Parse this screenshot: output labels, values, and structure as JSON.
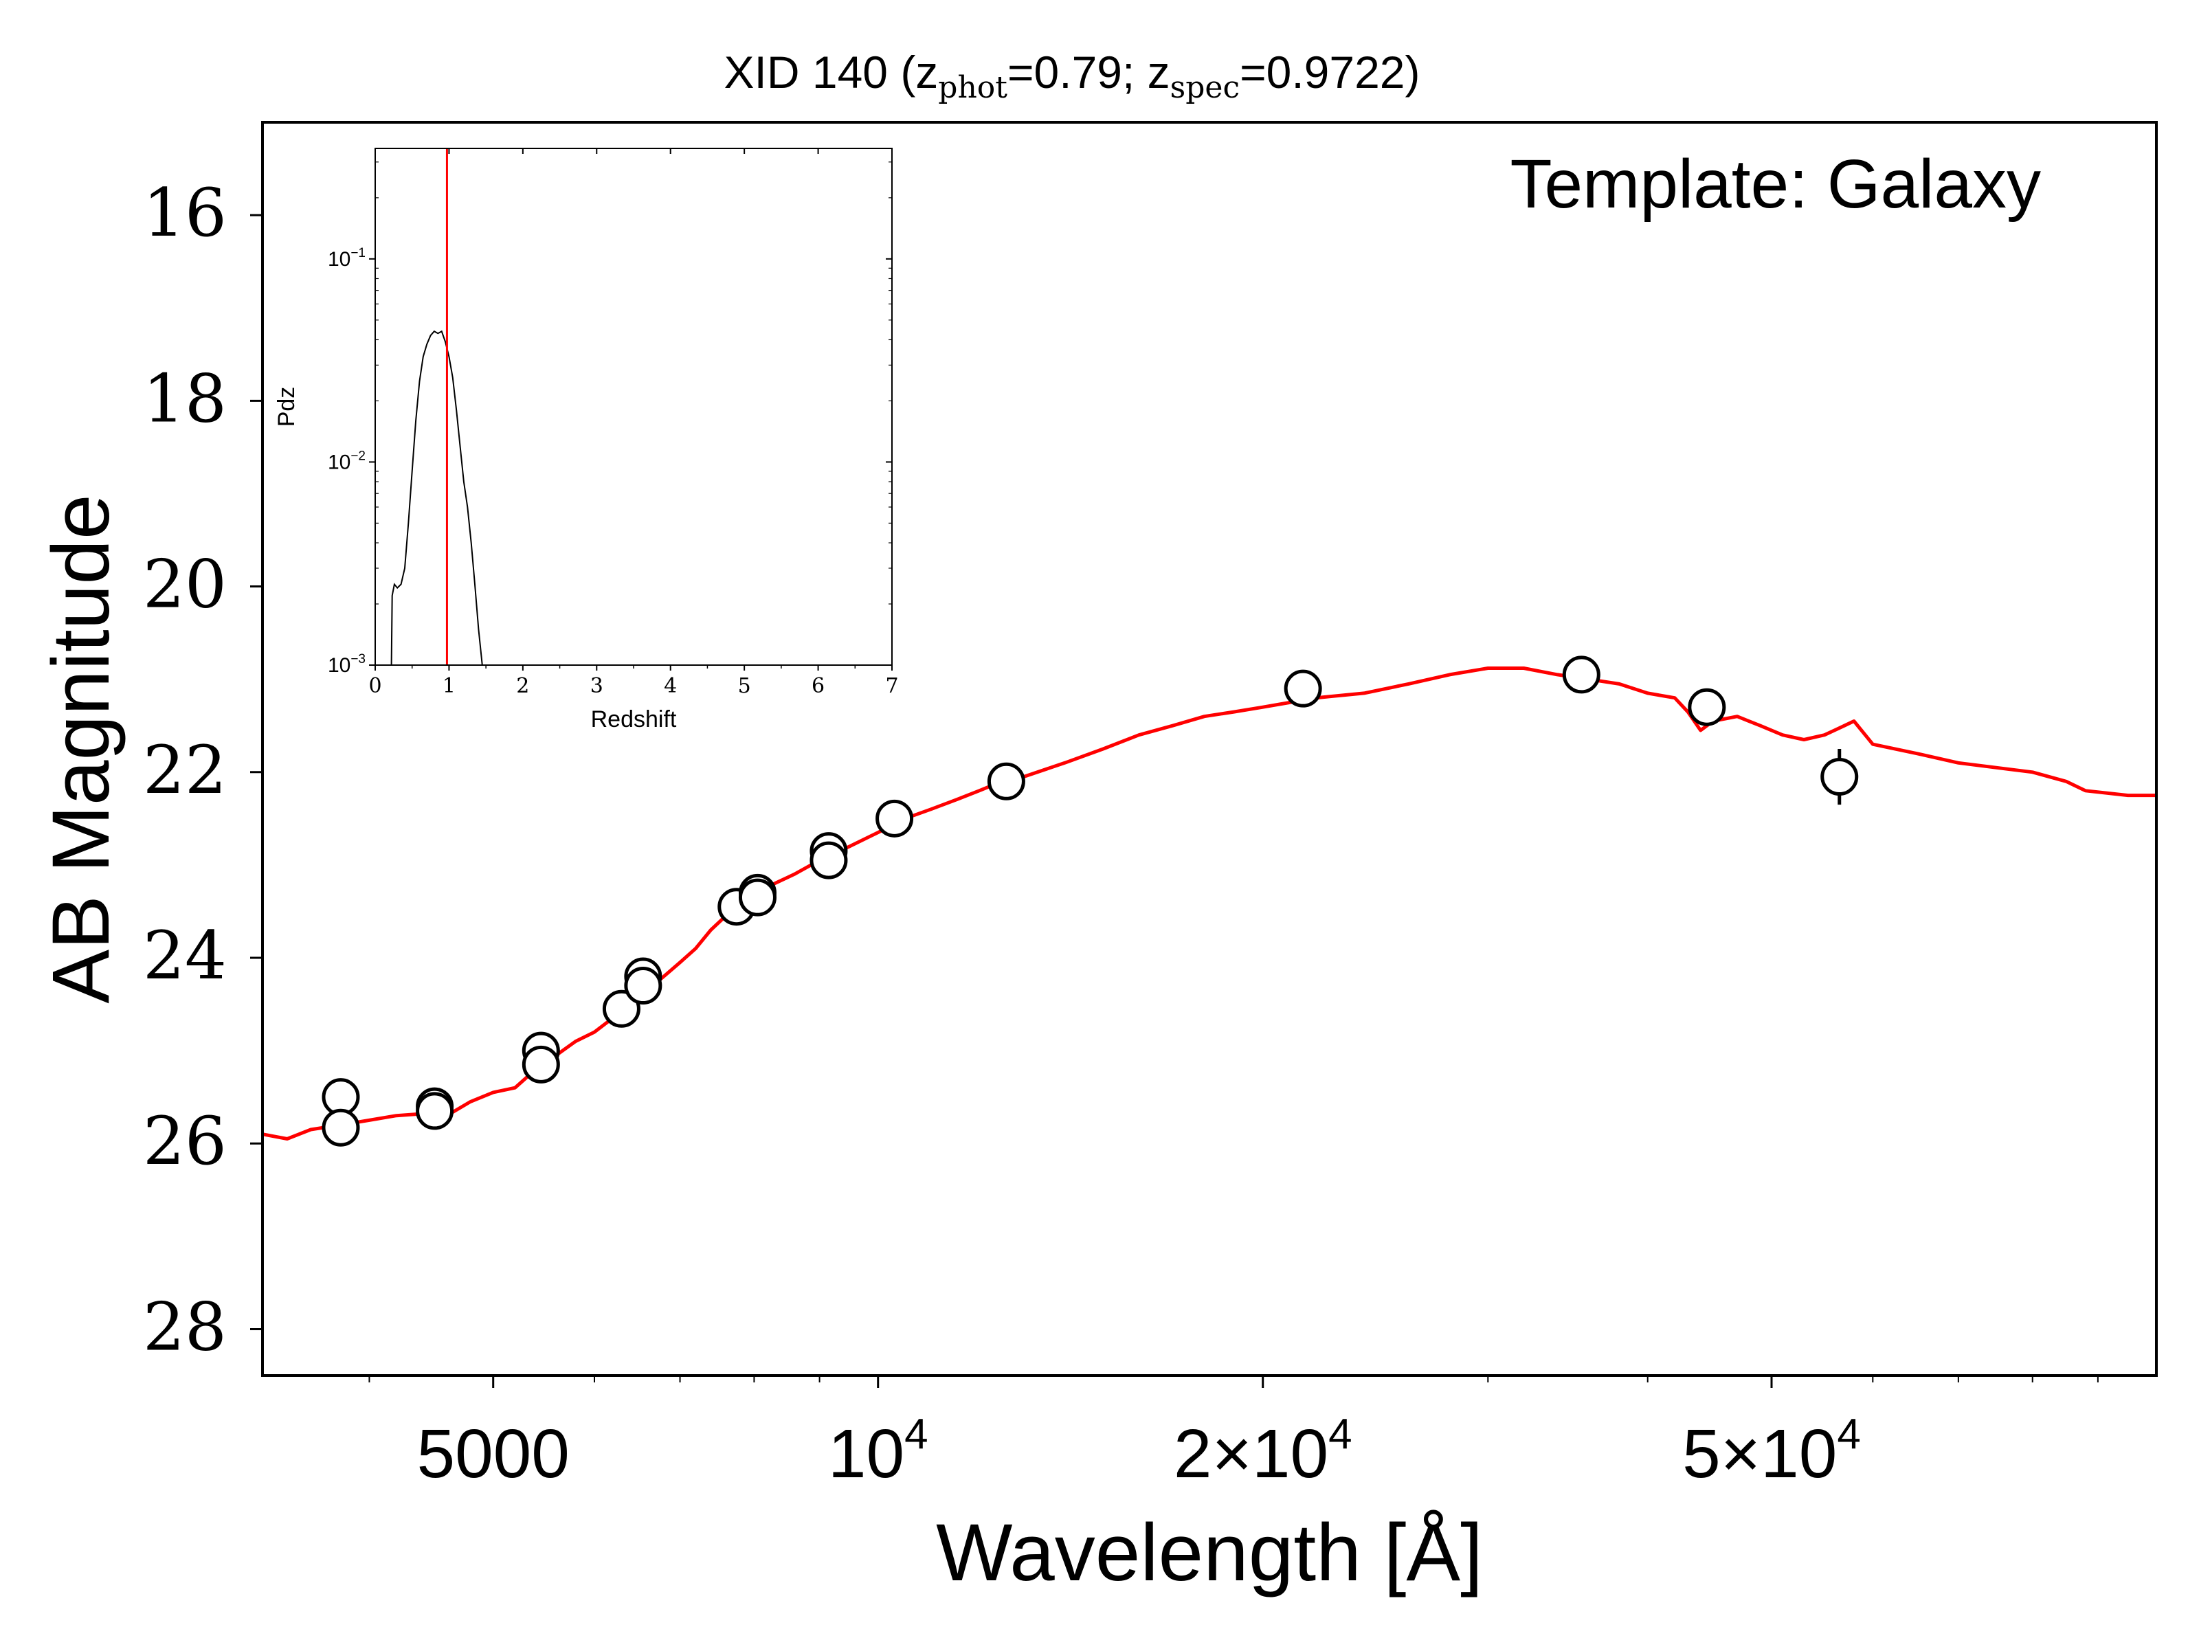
{
  "chart_data": [
    {
      "type": "scatter",
      "title": "XID 140 (zphot=0.79; zspec=0.9722)",
      "title_parts": {
        "prefix": "XID 140 (z",
        "sub1": "phot",
        "mid": "=0.79; z",
        "sub2": "spec",
        "suffix": "=0.9722)"
      },
      "annotation": "Template: Galaxy",
      "xlabel": "Wavelength [Å]",
      "ylabel": "AB Magnitude",
      "xscale": "log",
      "xlim": [
        3300,
        100000
      ],
      "ylim": [
        28.5,
        15.0
      ],
      "y_inverted": true,
      "xticks": [
        {
          "value": 5000,
          "label": "5000"
        },
        {
          "value": 10000,
          "label": "10",
          "sup": "4"
        },
        {
          "value": 20000,
          "label": "2×10",
          "sup": "4"
        },
        {
          "value": 50000,
          "label": "5×10",
          "sup": "4"
        }
      ],
      "yticks": [
        {
          "value": 16,
          "label": "16"
        },
        {
          "value": 18,
          "label": "18"
        },
        {
          "value": 20,
          "label": "20"
        },
        {
          "value": 22,
          "label": "22"
        },
        {
          "value": 24,
          "label": "24"
        },
        {
          "value": 26,
          "label": "26"
        },
        {
          "value": 28,
          "label": "28"
        }
      ],
      "grid": false,
      "series": [
        {
          "kind": "points",
          "color": "#000000",
          "marker": "open-circle",
          "points": [
            [
              3800,
              25.5
            ],
            [
              3800,
              25.83
            ],
            [
              4500,
              25.6
            ],
            [
              4500,
              25.65
            ],
            [
              5450,
              25.0
            ],
            [
              5450,
              25.15
            ],
            [
              6300,
              24.55
            ],
            [
              6550,
              24.2
            ],
            [
              6550,
              24.3
            ],
            [
              7750,
              23.45
            ],
            [
              8050,
              23.3
            ],
            [
              8050,
              23.35
            ],
            [
              9150,
              22.85
            ],
            [
              9150,
              22.95
            ],
            [
              10300,
              22.5
            ],
            [
              12600,
              22.1
            ],
            [
              21500,
              21.1
            ],
            [
              35500,
              20.95
            ],
            [
              44500,
              21.3
            ],
            [
              56500,
              22.05
            ]
          ],
          "yerr": [
            0,
            0,
            0,
            0,
            0,
            0,
            0,
            0,
            0,
            0,
            0,
            0,
            0,
            0,
            0,
            0,
            0,
            0,
            0,
            0.3
          ]
        },
        {
          "kind": "line",
          "color": "#ff0000",
          "points": [
            [
              3300,
              25.9
            ],
            [
              3450,
              25.95
            ],
            [
              3600,
              25.85
            ],
            [
              3800,
              25.8
            ],
            [
              4000,
              25.75
            ],
            [
              4200,
              25.7
            ],
            [
              4400,
              25.68
            ],
            [
              4600,
              25.7
            ],
            [
              4800,
              25.55
            ],
            [
              5000,
              25.45
            ],
            [
              5200,
              25.4
            ],
            [
              5400,
              25.2
            ],
            [
              5600,
              25.05
            ],
            [
              5800,
              24.9
            ],
            [
              6000,
              24.8
            ],
            [
              6200,
              24.65
            ],
            [
              6400,
              24.5
            ],
            [
              6600,
              24.35
            ],
            [
              6800,
              24.2
            ],
            [
              7000,
              24.05
            ],
            [
              7200,
              23.9
            ],
            [
              7400,
              23.7
            ],
            [
              7600,
              23.55
            ],
            [
              7800,
              23.45
            ],
            [
              8000,
              23.35
            ],
            [
              8300,
              23.2
            ],
            [
              8600,
              23.1
            ],
            [
              9000,
              22.95
            ],
            [
              9500,
              22.8
            ],
            [
              10000,
              22.65
            ],
            [
              10500,
              22.5
            ],
            [
              11000,
              22.4
            ],
            [
              11500,
              22.3
            ],
            [
              12000,
              22.2
            ],
            [
              12500,
              22.1
            ],
            [
              13000,
              22.05
            ],
            [
              14000,
              21.9
            ],
            [
              15000,
              21.75
            ],
            [
              16000,
              21.6
            ],
            [
              17000,
              21.5
            ],
            [
              18000,
              21.4
            ],
            [
              19000,
              21.35
            ],
            [
              20000,
              21.3
            ],
            [
              21000,
              21.25
            ],
            [
              22000,
              21.2
            ],
            [
              24000,
              21.15
            ],
            [
              26000,
              21.05
            ],
            [
              28000,
              20.95
            ],
            [
              30000,
              20.88
            ],
            [
              32000,
              20.88
            ],
            [
              34000,
              20.95
            ],
            [
              36000,
              21.0
            ],
            [
              38000,
              21.05
            ],
            [
              40000,
              21.15
            ],
            [
              42000,
              21.2
            ],
            [
              43000,
              21.35
            ],
            [
              44000,
              21.55
            ],
            [
              45000,
              21.45
            ],
            [
              47000,
              21.4
            ],
            [
              49000,
              21.5
            ],
            [
              51000,
              21.6
            ],
            [
              53000,
              21.65
            ],
            [
              55000,
              21.6
            ],
            [
              57000,
              21.5
            ],
            [
              58000,
              21.45
            ],
            [
              60000,
              21.7
            ],
            [
              65000,
              21.8
            ],
            [
              70000,
              21.9
            ],
            [
              80000,
              22.0
            ],
            [
              85000,
              22.1
            ],
            [
              88000,
              22.2
            ],
            [
              95000,
              22.25
            ],
            [
              100000,
              22.25
            ]
          ]
        }
      ]
    },
    {
      "type": "line",
      "title": "",
      "xlabel": "Redshift",
      "ylabel": "Pdz",
      "yscale": "log",
      "xlim": [
        0,
        7
      ],
      "ylim": [
        0.001,
        0.35
      ],
      "xticks": [
        {
          "value": 0,
          "label": "0"
        },
        {
          "value": 1,
          "label": "1"
        },
        {
          "value": 2,
          "label": "2"
        },
        {
          "value": 3,
          "label": "3"
        },
        {
          "value": 4,
          "label": "4"
        },
        {
          "value": 5,
          "label": "5"
        },
        {
          "value": 6,
          "label": "6"
        },
        {
          "value": 7,
          "label": "7"
        }
      ],
      "yticks": [
        {
          "value": 0.001,
          "label": "10",
          "sup": "−3"
        },
        {
          "value": 0.01,
          "label": "10",
          "sup": "−2"
        },
        {
          "value": 0.1,
          "label": "10",
          "sup": "−1"
        }
      ],
      "vline": {
        "x": 0.9722,
        "color": "#ff0000"
      },
      "series": [
        {
          "color": "#000000",
          "points": [
            [
              0.22,
              0.001
            ],
            [
              0.23,
              0.0022
            ],
            [
              0.26,
              0.0025
            ],
            [
              0.3,
              0.0024
            ],
            [
              0.35,
              0.0025
            ],
            [
              0.4,
              0.003
            ],
            [
              0.45,
              0.005
            ],
            [
              0.5,
              0.009
            ],
            [
              0.55,
              0.016
            ],
            [
              0.6,
              0.025
            ],
            [
              0.65,
              0.033
            ],
            [
              0.7,
              0.038
            ],
            [
              0.75,
              0.042
            ],
            [
              0.8,
              0.044
            ],
            [
              0.85,
              0.043
            ],
            [
              0.9,
              0.044
            ],
            [
              0.95,
              0.039
            ],
            [
              1.0,
              0.033
            ],
            [
              1.05,
              0.026
            ],
            [
              1.1,
              0.018
            ],
            [
              1.15,
              0.012
            ],
            [
              1.2,
              0.008
            ],
            [
              1.25,
              0.006
            ],
            [
              1.3,
              0.004
            ],
            [
              1.35,
              0.0025
            ],
            [
              1.4,
              0.0015
            ],
            [
              1.45,
              0.001
            ]
          ]
        }
      ]
    }
  ]
}
